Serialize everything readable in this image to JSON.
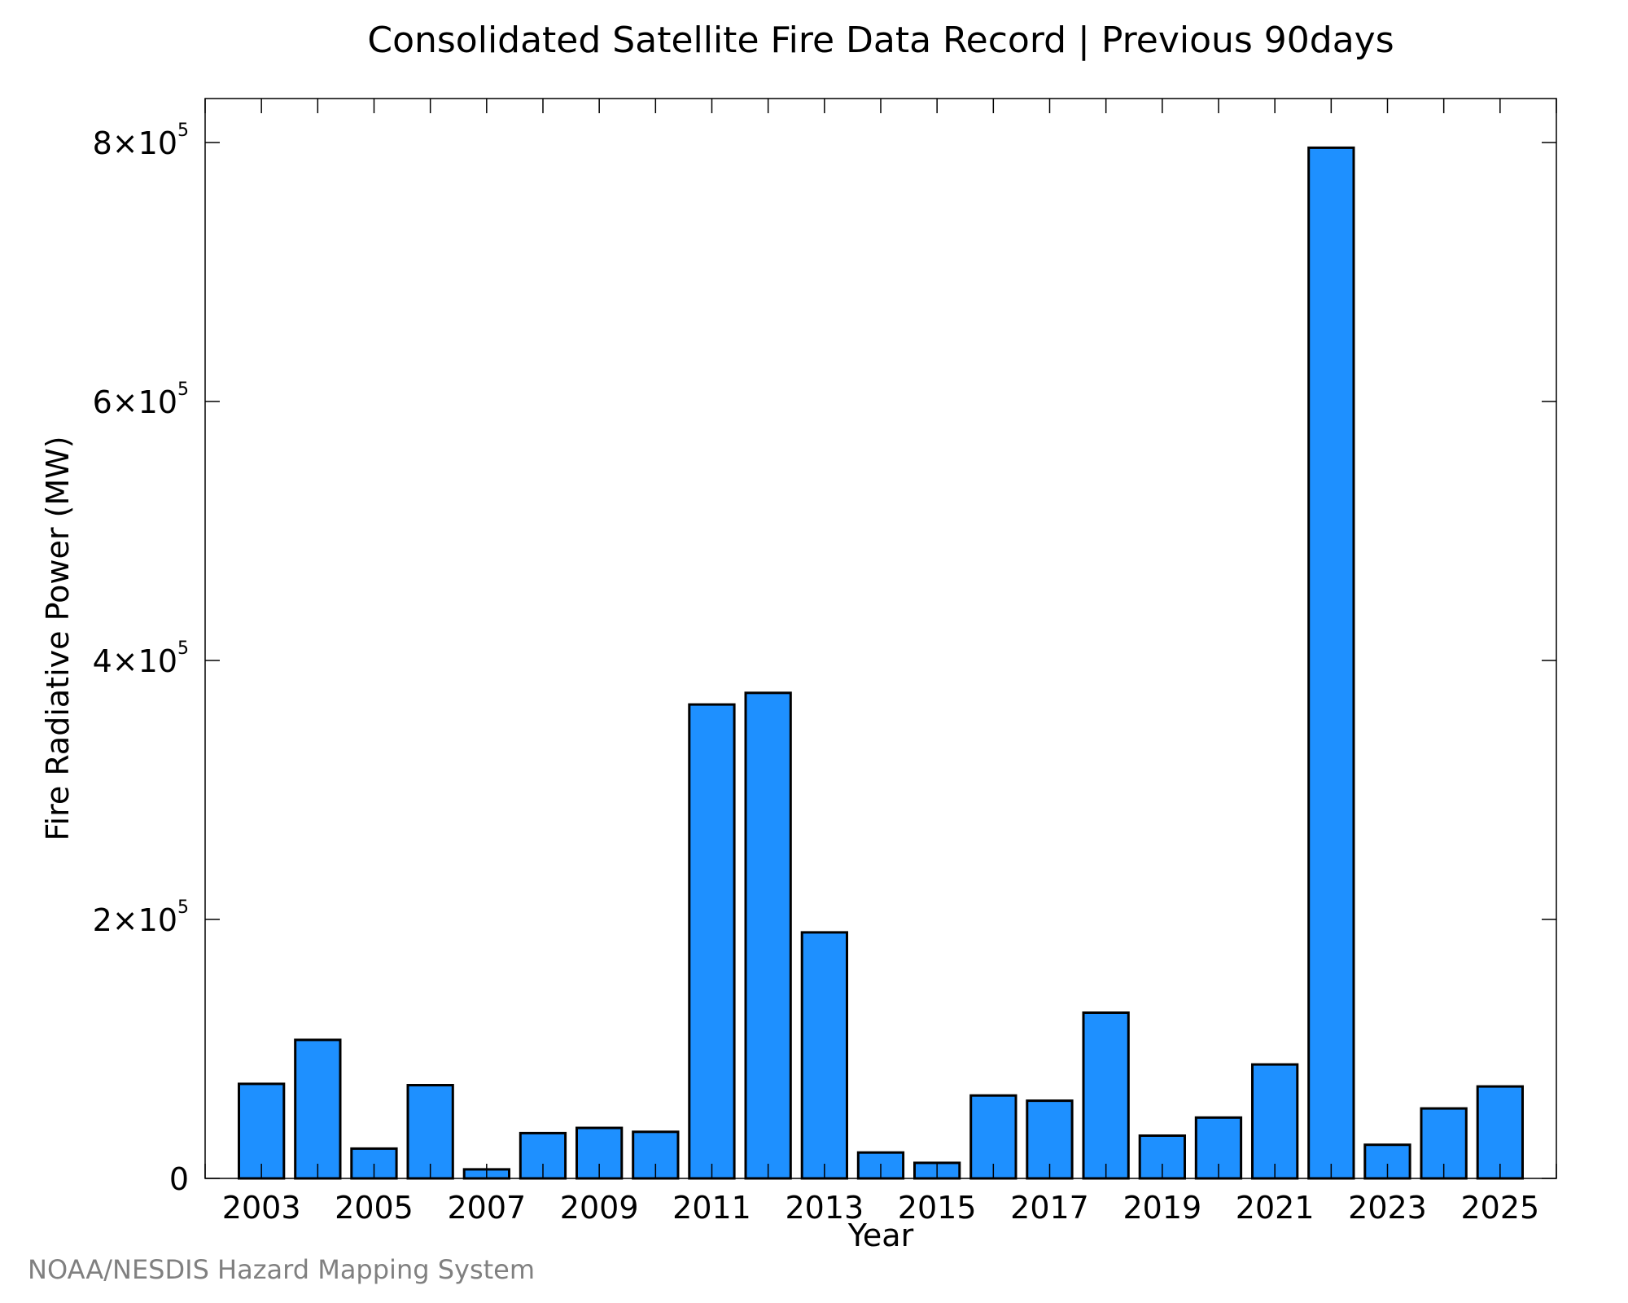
{
  "chart_data": {
    "type": "bar",
    "title": "Consolidated Satellite Fire Data Record | Previous 90days",
    "xlabel": "Year",
    "ylabel": "Fire Radiative Power (MW)",
    "categories": [
      2003,
      2004,
      2005,
      2006,
      2007,
      2008,
      2009,
      2010,
      2011,
      2012,
      2013,
      2014,
      2015,
      2016,
      2017,
      2018,
      2019,
      2020,
      2021,
      2022,
      2023,
      2024,
      2025
    ],
    "values": [
      73000,
      107000,
      23000,
      72000,
      7000,
      35000,
      39000,
      36000,
      366000,
      375000,
      190000,
      20000,
      12000,
      64000,
      60000,
      128000,
      33000,
      47000,
      88000,
      796000,
      26000,
      54000,
      71000
    ],
    "x_tick_labels": [
      "2003",
      "2005",
      "2007",
      "2009",
      "2011",
      "2013",
      "2015",
      "2017",
      "2019",
      "2021",
      "2023",
      "2025"
    ],
    "y_ticks": [
      {
        "value": 0,
        "mantissa": "0",
        "exponent": ""
      },
      {
        "value": 200000,
        "mantissa": "2×10",
        "exponent": "5"
      },
      {
        "value": 400000,
        "mantissa": "4×10",
        "exponent": "5"
      },
      {
        "value": 600000,
        "mantissa": "6×10",
        "exponent": "5"
      },
      {
        "value": 800000,
        "mantissa": "8×10",
        "exponent": "5"
      }
    ],
    "ylim": [
      0,
      834000
    ],
    "xlim": [
      2002,
      2026
    ],
    "bar_color": "#1e90ff",
    "grid": false,
    "legend": "none"
  },
  "credit": "NOAA/NESDIS Hazard Mapping System"
}
